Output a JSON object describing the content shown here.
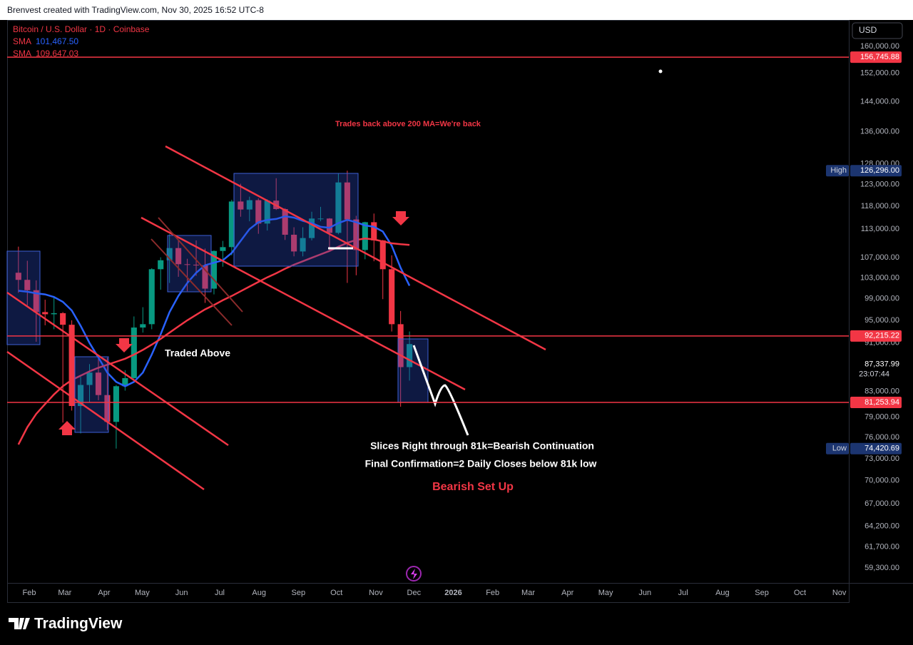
{
  "header": {
    "text": "Brenvest created with TradingView.com, Nov 30, 2025 16:52 UTC-8"
  },
  "chart_data": {
    "type": "candlestick",
    "title": "Bitcoin / U.S. Dollar · 1D · Coinbase",
    "currency": "USD",
    "x": [
      -12,
      -5,
      2,
      9,
      16,
      23,
      30,
      37,
      44,
      51,
      58,
      65,
      72,
      79,
      86,
      93,
      100,
      107,
      114,
      121,
      128,
      135,
      142,
      149,
      156,
      163,
      170,
      177,
      184,
      191,
      198,
      205,
      212,
      219,
      226,
      233,
      240,
      247,
      254,
      261,
      268,
      275,
      282,
      289,
      296
    ],
    "open": [
      104000,
      102600,
      100600,
      96500,
      96100,
      96300,
      94200,
      80700,
      84000,
      86000,
      82400,
      78300,
      83800,
      85100,
      93700,
      94300,
      104700,
      106500,
      109000,
      105700,
      105600,
      105500,
      100900,
      108400,
      109200,
      119100,
      117300,
      119400,
      114200,
      119300,
      117400,
      111800,
      108300,
      111100,
      115300,
      115300,
      112200,
      123500,
      115100,
      108600,
      114500,
      110600,
      104700,
      94300,
      86900
    ],
    "high": [
      109300,
      106400,
      102500,
      98800,
      99500,
      96500,
      95000,
      85300,
      87400,
      88700,
      88500,
      84000,
      86400,
      95700,
      97400,
      104900,
      107100,
      111900,
      110700,
      106800,
      110600,
      108900,
      108500,
      110500,
      119500,
      123200,
      120200,
      119800,
      119600,
      124500,
      117600,
      113400,
      113400,
      116800,
      117900,
      115400,
      125700,
      126296,
      115900,
      114600,
      116400,
      110700,
      107500,
      96700,
      93000
    ],
    "low": [
      100100,
      97700,
      91200,
      94100,
      93400,
      78200,
      80000,
      76600,
      81200,
      81600,
      77100,
      74420.69,
      83100,
      85000,
      92800,
      93400,
      100700,
      102000,
      103200,
      100400,
      103400,
      98200,
      99800,
      105200,
      107500,
      115700,
      114700,
      112000,
      112700,
      117200,
      110700,
      107300,
      107300,
      110600,
      114700,
      108600,
      111900,
      102000,
      103500,
      106700,
      106300,
      98900,
      93000,
      80600,
      84700
    ],
    "close": [
      102600,
      100600,
      96500,
      96100,
      96300,
      94200,
      80700,
      84000,
      86000,
      82400,
      78300,
      83800,
      85100,
      93700,
      94300,
      104700,
      106500,
      109000,
      105700,
      105600,
      105500,
      100900,
      108400,
      109200,
      119100,
      117300,
      119400,
      114200,
      119300,
      117400,
      111800,
      108300,
      111100,
      115300,
      115300,
      112200,
      123500,
      115100,
      108600,
      114500,
      110600,
      104700,
      94300,
      86900,
      90800
    ],
    "up_color": "#089981",
    "down_color": "#f23645",
    "series": [
      {
        "name": "SMA",
        "color": "#2962ff",
        "last_value": {
          "value": 101467.5,
          "label": "101,467.50"
        },
        "values": [
          100500,
          100300,
          100000,
          99800,
          99300,
          98400,
          96800,
          94000,
          91000,
          88500,
          86000,
          84500,
          83800,
          84500,
          86000,
          89000,
          92500,
          96500,
          99500,
          102000,
          104000,
          105500,
          106000,
          106500,
          108000,
          110500,
          113000,
          114500,
          115000,
          115200,
          115800,
          115500,
          114800,
          114300,
          113500,
          113300,
          114300,
          115000,
          114500,
          113800,
          113500,
          112500,
          109500,
          105000,
          101467.5
        ]
      },
      {
        "name": "SMA",
        "color": "#f23645",
        "last_value": {
          "value": 109647.03,
          "label": "109,647.03"
        },
        "values": [
          75000,
          77500,
          79500,
          81000,
          82500,
          83800,
          84800,
          85500,
          86200,
          86800,
          87300,
          87800,
          88300,
          89000,
          89800,
          90700,
          91700,
          92800,
          93900,
          95000,
          96000,
          97000,
          97800,
          98700,
          99500,
          100400,
          101300,
          102200,
          103100,
          103900,
          104800,
          105600,
          106300,
          107000,
          107700,
          108400,
          109300,
          110100,
          110700,
          111000,
          110800,
          110400,
          110000,
          109800,
          109647.03
        ]
      }
    ],
    "xlim": [
      -17.4,
      645.5
    ],
    "xticks": [
      {
        "value": 0,
        "label": "Feb"
      },
      {
        "value": 28,
        "label": "Mar"
      },
      {
        "value": 59,
        "label": "Apr"
      },
      {
        "value": 89,
        "label": "May"
      },
      {
        "value": 120,
        "label": "Jun"
      },
      {
        "value": 150,
        "label": "Jul"
      },
      {
        "value": 181,
        "label": "Aug"
      },
      {
        "value": 212,
        "label": "Sep"
      },
      {
        "value": 242,
        "label": "Oct"
      },
      {
        "value": 273,
        "label": "Nov"
      },
      {
        "value": 303,
        "label": "Dec"
      },
      {
        "value": 334,
        "label": "2026"
      },
      {
        "value": 365,
        "label": "Feb"
      },
      {
        "value": 393,
        "label": "Mar"
      },
      {
        "value": 424,
        "label": "Apr"
      },
      {
        "value": 454,
        "label": "May"
      },
      {
        "value": 485,
        "label": "Jun"
      },
      {
        "value": 515,
        "label": "Jul"
      },
      {
        "value": 546,
        "label": "Aug"
      },
      {
        "value": 577,
        "label": "Sep"
      },
      {
        "value": 607,
        "label": "Oct"
      },
      {
        "value": 638,
        "label": "Nov"
      }
    ],
    "ylim": [
      57630,
      168250
    ],
    "yscale": "log",
    "yticks": [
      {
        "value": 160000,
        "label": "160,000.00"
      },
      {
        "value": 152000,
        "label": "152,000.00"
      },
      {
        "value": 144000,
        "label": "144,000.00"
      },
      {
        "value": 136000,
        "label": "136,000.00"
      },
      {
        "value": 128000,
        "label": "128,000.00"
      },
      {
        "value": 123000,
        "label": "123,000.00"
      },
      {
        "value": 118000,
        "label": "118,000.00"
      },
      {
        "value": 113000,
        "label": "113,000.00"
      },
      {
        "value": 107000,
        "label": "107,000.00"
      },
      {
        "value": 103000,
        "label": "103,000.00"
      },
      {
        "value": 99000,
        "label": "99,000.00"
      },
      {
        "value": 95000,
        "label": "95,000.00"
      },
      {
        "value": 91000,
        "label": "91,000.00"
      },
      {
        "value": 83000,
        "label": "83,000.00"
      },
      {
        "value": 79000,
        "label": "79,000.00"
      },
      {
        "value": 76000,
        "label": "76,000.00"
      },
      {
        "value": 73000,
        "label": "73,000.00"
      },
      {
        "value": 70000,
        "label": "70,000.00"
      },
      {
        "value": 67000,
        "label": "67,000.00"
      },
      {
        "value": 64200,
        "label": "64,200.00"
      },
      {
        "value": 61700,
        "label": "61,700.00"
      },
      {
        "value": 59300,
        "label": "59,300.00"
      }
    ],
    "price_labels": [
      {
        "value": 156745.88,
        "label": "156,745.88",
        "color": "#f23645",
        "line": true
      },
      {
        "value": 126296,
        "label": "126,296.00",
        "tag": "High",
        "color": "#1c3570"
      },
      {
        "value": 92215.22,
        "label": "92,215.22",
        "color": "#f23645",
        "line": true
      },
      {
        "value": 87337.99,
        "label": "87,337.99",
        "countdown": "23:07:44",
        "color": "#000000"
      },
      {
        "value": 81253.94,
        "label": "81,253.94",
        "color": "#f23645",
        "line": true
      },
      {
        "value": 74420.69,
        "label": "74,420.69",
        "tag": "Low",
        "color": "#1c3570"
      }
    ],
    "annotations": [
      "Trades back above 200 MA=We're back",
      "Traded Above",
      "Slices Right through 81k=Bearish Continuation",
      "Final Confirmation=2 Daily Closes below 81k low",
      "Bearish Set Up"
    ],
    "watermark": "TradingView"
  }
}
